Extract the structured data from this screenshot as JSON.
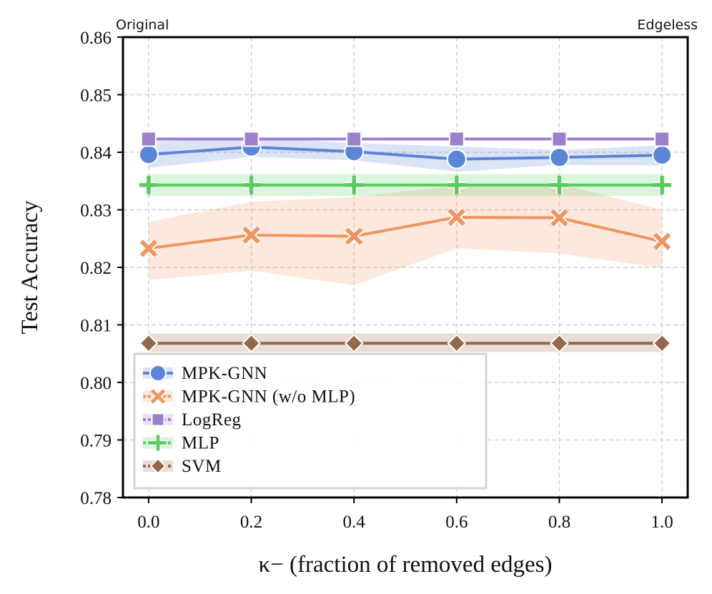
{
  "chart_data": {
    "type": "line",
    "xlabel": "κ− (fraction of removed edges)",
    "ylabel": "Test Accuracy",
    "x": [
      0.0,
      0.2,
      0.4,
      0.6,
      0.8,
      1.0
    ],
    "xticks": [
      "0.0",
      "0.2",
      "0.4",
      "0.6",
      "0.8",
      "1.0"
    ],
    "xlim": [
      -0.05,
      1.05
    ],
    "ylim": [
      0.78,
      0.86
    ],
    "yticks": [
      "0.78",
      "0.79",
      "0.80",
      "0.81",
      "0.82",
      "0.83",
      "0.84",
      "0.85",
      "0.86"
    ],
    "grid": true,
    "legend_position": "bottom-left",
    "annotations": {
      "left": "Original",
      "right": "Edgeless"
    },
    "series": [
      {
        "name": "MPK-GNN",
        "color": "#5b86d8",
        "marker": "circle",
        "values": [
          0.8396,
          0.8409,
          0.8401,
          0.8388,
          0.8391,
          0.8395
        ],
        "lower": [
          0.8373,
          0.8392,
          0.8386,
          0.8366,
          0.8378,
          0.8377
        ],
        "upper": [
          0.8418,
          0.8426,
          0.8416,
          0.841,
          0.8404,
          0.8412
        ]
      },
      {
        "name": "MPK-GNN (w/o MLP)",
        "color": "#f0955e",
        "marker": "x",
        "values": [
          0.8233,
          0.8256,
          0.8254,
          0.8287,
          0.8286,
          0.8245
        ],
        "lower": [
          0.8178,
          0.8194,
          0.8169,
          0.8233,
          0.8224,
          0.8199
        ],
        "upper": [
          0.8279,
          0.8314,
          0.8322,
          0.8342,
          0.8345,
          0.83
        ]
      },
      {
        "name": "LogReg",
        "color": "#9c7fcf",
        "marker": "square",
        "values": [
          0.8423,
          0.8423,
          0.8423,
          0.8423,
          0.8423,
          0.8423
        ],
        "lower": [
          0.8421,
          0.8421,
          0.8421,
          0.8421,
          0.8421,
          0.8421
        ],
        "upper": [
          0.8425,
          0.8425,
          0.8425,
          0.8425,
          0.8425,
          0.8425
        ]
      },
      {
        "name": "MLP",
        "color": "#5ccb5f",
        "marker": "plus",
        "values": [
          0.8343,
          0.8343,
          0.8343,
          0.8343,
          0.8343,
          0.8343
        ],
        "lower": [
          0.8324,
          0.8324,
          0.8324,
          0.8324,
          0.8324,
          0.8324
        ],
        "upper": [
          0.8362,
          0.8362,
          0.8362,
          0.8362,
          0.8362,
          0.8362
        ]
      },
      {
        "name": "SVM",
        "color": "#94694a",
        "marker": "diamond",
        "values": [
          0.8068,
          0.8068,
          0.8068,
          0.8068,
          0.8068,
          0.8068
        ],
        "lower": [
          0.8053,
          0.8053,
          0.8053,
          0.8053,
          0.8053,
          0.8053
        ],
        "upper": [
          0.8085,
          0.8085,
          0.8085,
          0.8085,
          0.8085,
          0.8085
        ]
      }
    ]
  }
}
